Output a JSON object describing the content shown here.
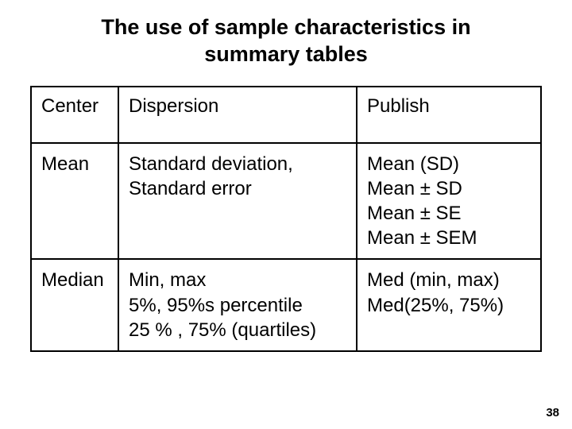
{
  "title": "The use of sample characteristics in summary tables",
  "pageNumber": "38",
  "table": {
    "header": {
      "center": "Center",
      "dispersion": "Dispersion",
      "publish": "Publish"
    },
    "row1": {
      "center": "Mean",
      "dispersion": "Standard deviation,\nStandard error",
      "publish": "Mean (SD)\nMean ± SD\nMean ± SE\nMean ± SEM"
    },
    "row2": {
      "center": "Median",
      "dispersion": "Min, max\n5%, 95%s percentile\n25 % , 75% (quartiles)",
      "publish": "Med (min, max)\nMed(25%, 75%)"
    }
  }
}
